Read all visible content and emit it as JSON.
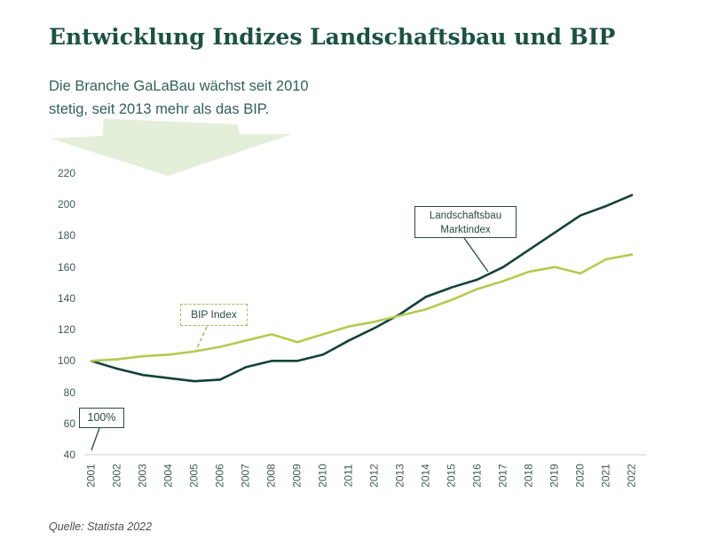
{
  "header": {
    "title": "Entwicklung Indizes Landschaftsbau und BIP",
    "subtitle_line1": "Die Branche GaLaBau wächst seit 2010",
    "subtitle_line2": "stetig, seit 2013 mehr als das BIP."
  },
  "chart_data": {
    "type": "line",
    "x": [
      2001,
      2002,
      2003,
      2004,
      2005,
      2006,
      2007,
      2008,
      2009,
      2010,
      2011,
      2012,
      2013,
      2014,
      2015,
      2016,
      2017,
      2018,
      2019,
      2020,
      2021,
      2022
    ],
    "series": [
      {
        "id": "marktindex",
        "name": "Landschaftsbau Marktindex",
        "color": "#14413a",
        "values": [
          100,
          95,
          91,
          89,
          87,
          88,
          96,
          100,
          100,
          104,
          113,
          121,
          130,
          141,
          147,
          152,
          160,
          171,
          182,
          193,
          199,
          206
        ]
      },
      {
        "id": "bip",
        "name": "BIP Index",
        "color": "#b2cb4e",
        "values": [
          100,
          101,
          103,
          104,
          106,
          109,
          113,
          117,
          112,
          117,
          122,
          125,
          129,
          133,
          139,
          146,
          151,
          157,
          160,
          156,
          165,
          168
        ]
      }
    ],
    "ylim": [
      40,
      220
    ],
    "y_ticks": [
      220,
      200,
      180,
      160,
      140,
      120,
      100,
      80,
      60,
      40
    ],
    "grid": false,
    "legend_position": "inline-callouts",
    "title": "Entwicklung Indizes Landschaftsbau und BIP",
    "xlabel": "",
    "ylabel": ""
  },
  "annotations": {
    "marktindex_label": {
      "line1": "Landschaftsbau",
      "line2": "Marktindex"
    },
    "bip_label": "BIP Index",
    "start_label": "100%"
  },
  "source": "Quelle: Statista 2022",
  "colors": {
    "title": "#1b5243",
    "subtitle": "#33605a",
    "arrow": "#e4efda",
    "marktindex_line": "#14413a",
    "bip_line": "#b2cb4e",
    "axis_labels": "#3f5a55",
    "axis_line": "#d8d8d8"
  }
}
